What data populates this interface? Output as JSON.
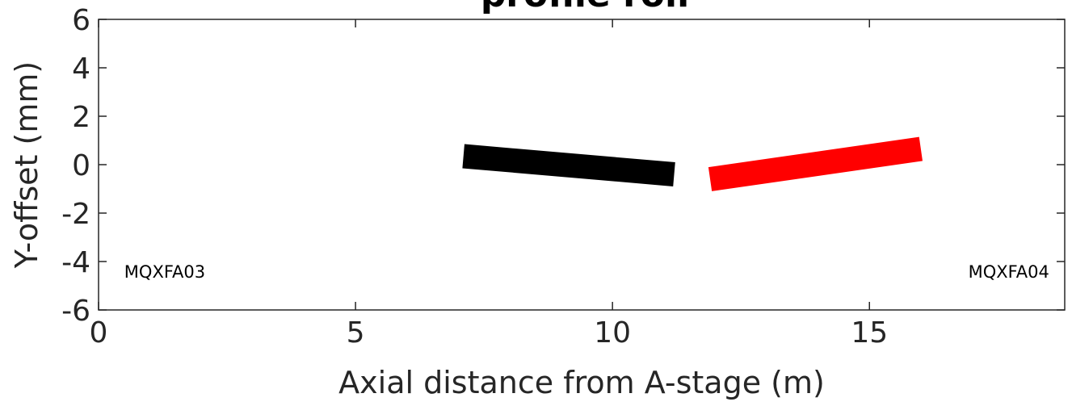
{
  "chart_data": {
    "type": "line",
    "title": "profile roll",
    "xlabel": "Axial distance from A-stage (m)",
    "ylabel": "Y-offset (mm)",
    "xlim": [
      0,
      18.8
    ],
    "ylim": [
      -6,
      6
    ],
    "xticks": [
      0,
      5,
      10,
      15
    ],
    "yticks": [
      -6,
      -4,
      -2,
      0,
      2,
      4,
      6
    ],
    "grid": false,
    "series": [
      {
        "color": "#000000",
        "x": [
          7.1,
          11.2
        ],
        "y": [
          0.35,
          -0.4
        ]
      },
      {
        "color": "#ff0000",
        "x": [
          11.9,
          16.0
        ],
        "y": [
          -0.6,
          0.65
        ]
      }
    ],
    "annotations": [
      {
        "text": "MQXFA03",
        "x": 0.5,
        "y": -4.4
      },
      {
        "text": "MQXFA04",
        "x": 18.5,
        "y": -4.4
      }
    ]
  }
}
